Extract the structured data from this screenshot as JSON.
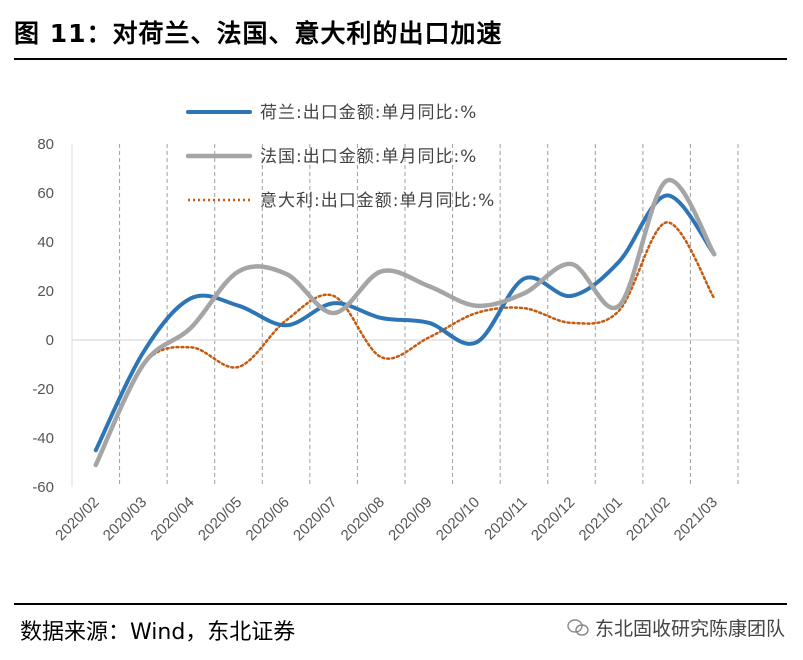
{
  "header": {
    "title": "图 11：对荷兰、法国、意大利的出口加速"
  },
  "footer": {
    "source": "数据来源：Wind，东北证券",
    "watermark": "东北固收研究陈康团队"
  },
  "colors": {
    "netherlands": "#2E75B6",
    "france": "#A5A5A5",
    "italy": "#C55A11",
    "grid": "#A0A0A0",
    "axis": "#D9D9D9"
  },
  "chart_data": {
    "type": "line",
    "title": "",
    "xlabel": "",
    "ylabel": "",
    "ylim": [
      -60,
      80
    ],
    "yticks": [
      -60,
      -40,
      -20,
      0,
      20,
      40,
      60,
      80
    ],
    "categories": [
      "2020/02",
      "2020/03",
      "2020/04",
      "2020/05",
      "2020/06",
      "2020/07",
      "2020/08",
      "2020/09",
      "2020/10",
      "2020/11",
      "2020/12",
      "2021/01",
      "2021/02",
      "2021/03"
    ],
    "series": [
      {
        "name": "荷兰:出口金额:单月同比:%",
        "style": "solid",
        "values": [
          -45,
          -5,
          17,
          14,
          6,
          15,
          9,
          7,
          -1,
          25,
          18,
          32,
          59,
          35
        ]
      },
      {
        "name": "法国:出口金额:单月同比:%",
        "style": "solid",
        "values": [
          -51,
          -10,
          5,
          28,
          27,
          11,
          28,
          22,
          14,
          19,
          31,
          14,
          65,
          35
        ]
      },
      {
        "name": "意大利:出口金额:单月同比:%",
        "style": "dotted",
        "values": [
          -51,
          -10,
          -3,
          -11,
          8,
          18,
          -7,
          1,
          11,
          13,
          7,
          12,
          48,
          17
        ]
      }
    ],
    "legend_position": "top"
  }
}
